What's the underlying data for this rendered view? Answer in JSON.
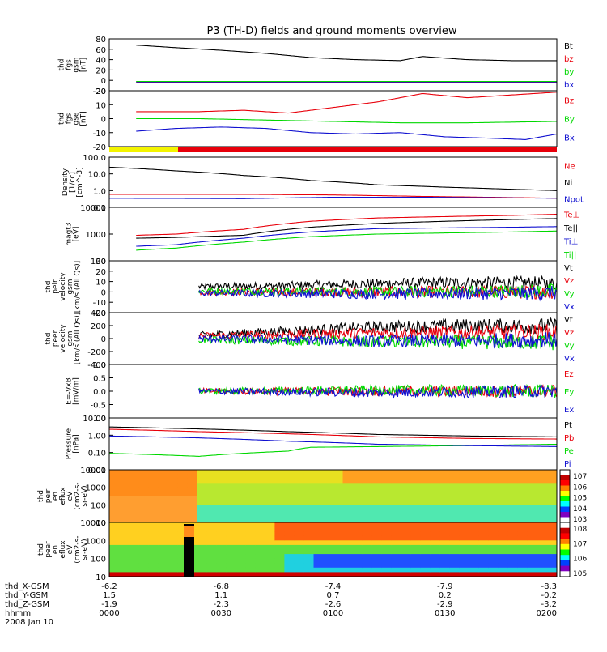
{
  "title": "P3 (TH-D) fields and ground moments overview",
  "colors": {
    "black": "#000000",
    "red": "#e8000b",
    "green": "#00d800",
    "blue": "#1010d0",
    "yellow": "#f4f400"
  },
  "chart_data": [
    {
      "type": "line",
      "id": "fgs",
      "ylabel": [
        "thd",
        "fgs",
        "gsm",
        "[nT]"
      ],
      "yticks": [
        "80",
        "60",
        "40",
        "20",
        "0",
        "-20"
      ],
      "ylim": [
        -20,
        80
      ],
      "legend": [
        {
          "label": "Bt",
          "color": "#000000"
        },
        {
          "label": "bz",
          "color": "#e8000b"
        },
        {
          "label": "by",
          "color": "#00d800"
        },
        {
          "label": "bx",
          "color": "#1010d0"
        }
      ],
      "series": [
        {
          "name": "Bt",
          "color": "#000000",
          "x": [
            0.06,
            0.15,
            0.25,
            0.35,
            0.45,
            0.55,
            0.65,
            0.7,
            0.8,
            0.9,
            1.0
          ],
          "y": [
            68,
            63,
            58,
            52,
            44,
            40,
            38,
            46,
            40,
            38,
            38
          ]
        },
        {
          "name": "bz",
          "color": "#e8000b",
          "x": [
            0.06,
            1.0
          ],
          "y": [
            -3,
            -3
          ]
        },
        {
          "name": "by",
          "color": "#00d800",
          "x": [
            0.06,
            1.0
          ],
          "y": [
            -2,
            -2
          ]
        },
        {
          "name": "bx",
          "color": "#1010d0",
          "x": [
            0.06,
            1.0
          ],
          "y": [
            -4,
            -4
          ]
        }
      ]
    },
    {
      "type": "line",
      "id": "fgs_gse",
      "ylabel": [
        "thd",
        "fgs",
        "gse",
        "[nT]"
      ],
      "yticks": [
        "20",
        "10",
        "0",
        "-10",
        "-20"
      ],
      "ylim": [
        -20,
        20
      ],
      "legend": [
        {
          "label": "Bz",
          "color": "#e8000b"
        },
        {
          "label": "By",
          "color": "#00d800"
        },
        {
          "label": "Bx",
          "color": "#1010d0"
        }
      ],
      "series": [
        {
          "name": "Bz",
          "color": "#e8000b",
          "x": [
            0.06,
            0.2,
            0.3,
            0.4,
            0.5,
            0.6,
            0.7,
            0.8,
            0.9,
            1.0
          ],
          "y": [
            5,
            5,
            6,
            4,
            8,
            12,
            18,
            15,
            17,
            19
          ]
        },
        {
          "name": "By",
          "color": "#00d800",
          "x": [
            0.06,
            0.2,
            0.35,
            0.5,
            0.65,
            0.8,
            1.0
          ],
          "y": [
            0,
            0,
            -1,
            -2,
            -3,
            -3,
            -2
          ]
        },
        {
          "name": "Bx",
          "color": "#1010d0",
          "x": [
            0.06,
            0.15,
            0.25,
            0.35,
            0.45,
            0.55,
            0.65,
            0.75,
            0.85,
            0.93,
            1.0
          ],
          "y": [
            -9,
            -7,
            -6,
            -7,
            -10,
            -11,
            -10,
            -13,
            -14,
            -15,
            -11
          ]
        }
      ]
    },
    {
      "type": "line",
      "id": "density",
      "ylabel": [
        "Density",
        "[1/cc]",
        "[cm^-3]"
      ],
      "yticks": [
        "100.0",
        "10.0",
        "1.0",
        "0.1"
      ],
      "ylim": [
        0.1,
        100
      ],
      "log": true,
      "legend": [
        {
          "label": "Ne",
          "color": "#e8000b"
        },
        {
          "label": "Ni",
          "color": "#000000"
        },
        {
          "label": "Npot",
          "color": "#1010d0"
        }
      ],
      "series": [
        {
          "name": "Ne",
          "color": "#e8000b",
          "x": [
            0.0,
            0.3,
            0.5,
            0.7,
            1.0
          ],
          "y": [
            0.6,
            0.6,
            0.55,
            0.45,
            0.35
          ]
        },
        {
          "name": "Ni",
          "color": "#000000",
          "x": [
            0.0,
            0.15,
            0.3,
            0.45,
            0.6,
            0.75,
            0.9,
            1.0
          ],
          "y": [
            25,
            15,
            8,
            4,
            2.2,
            1.6,
            1.2,
            1.0
          ]
        },
        {
          "name": "Npot",
          "color": "#1010d0",
          "x": [
            0.0,
            0.3,
            0.5,
            0.7,
            1.0
          ],
          "y": [
            0.35,
            0.33,
            0.4,
            0.4,
            0.35
          ]
        }
      ]
    },
    {
      "type": "line",
      "id": "temp",
      "ylabel": [
        "magt3",
        "[eV]"
      ],
      "yticks": [
        "10000",
        "1000",
        "100"
      ],
      "ylim": [
        100,
        10000
      ],
      "log": true,
      "legend": [
        {
          "label": "Te⊥",
          "color": "#e8000b"
        },
        {
          "label": "Te||",
          "color": "#000000"
        },
        {
          "label": "Ti⊥",
          "color": "#1010d0"
        },
        {
          "label": "Ti||",
          "color": "#00d800"
        }
      ],
      "series": [
        {
          "name": "Te⊥",
          "color": "#e8000b",
          "x": [
            0.06,
            0.15,
            0.3,
            0.45,
            0.6,
            0.75,
            0.9,
            1.0
          ],
          "y": [
            900,
            1000,
            1500,
            3000,
            4000,
            4500,
            5000,
            5500
          ]
        },
        {
          "name": "Te||",
          "color": "#000000",
          "x": [
            0.06,
            0.15,
            0.3,
            0.45,
            0.6,
            0.75,
            0.9,
            1.0
          ],
          "y": [
            700,
            750,
            900,
            1800,
            2500,
            3000,
            3500,
            3800
          ]
        },
        {
          "name": "Ti⊥",
          "color": "#1010d0",
          "x": [
            0.06,
            0.15,
            0.3,
            0.45,
            0.6,
            0.75,
            0.9,
            1.0
          ],
          "y": [
            350,
            400,
            700,
            1200,
            1600,
            1700,
            1800,
            1900
          ]
        },
        {
          "name": "Ti||",
          "color": "#00d800",
          "x": [
            0.06,
            0.15,
            0.3,
            0.45,
            0.6,
            0.75,
            0.9,
            1.0
          ],
          "y": [
            250,
            300,
            500,
            800,
            1000,
            1100,
            1200,
            1300
          ]
        }
      ]
    },
    {
      "type": "line",
      "id": "peir_v",
      "ylabel": [
        "thd",
        "peir",
        "velocity",
        "gsm",
        "[km/s (All Qs)]"
      ],
      "yticks": [
        "30",
        "20",
        "10",
        "0",
        "-10",
        "-20"
      ],
      "ylim": [
        -20,
        30
      ],
      "legend": [
        {
          "label": "Vt",
          "color": "#000000"
        },
        {
          "label": "Vz",
          "color": "#e8000b"
        },
        {
          "label": "Vy",
          "color": "#00d800"
        },
        {
          "label": "Vx",
          "color": "#1010d0"
        }
      ],
      "series": [
        {
          "name": "Vt",
          "color": "#000000",
          "x": [
            0.2,
            0.4,
            0.6,
            0.8,
            1.0
          ],
          "y": [
            5,
            6,
            8,
            9,
            8
          ]
        },
        {
          "name": "Vz",
          "color": "#e8000b",
          "x": [
            0.2,
            0.6,
            1.0
          ],
          "y": [
            0,
            0,
            0
          ]
        },
        {
          "name": "Vy",
          "color": "#00d800",
          "x": [
            0.2,
            0.6,
            1.0
          ],
          "y": [
            1,
            0,
            1
          ]
        },
        {
          "name": "Vx",
          "color": "#1010d0",
          "x": [
            0.2,
            0.6,
            1.0
          ],
          "y": [
            -1,
            -2,
            -1
          ]
        }
      ]
    },
    {
      "type": "line",
      "id": "peer_v",
      "ylabel": [
        "thd",
        "peer",
        "velocity",
        "gsm",
        "[km/s (All Qs)]"
      ],
      "yticks": [
        "400",
        "200",
        "0",
        "-200",
        "-400"
      ],
      "ylim": [
        -400,
        400
      ],
      "legend": [
        {
          "label": "Vt",
          "color": "#000000"
        },
        {
          "label": "Vz",
          "color": "#e8000b"
        },
        {
          "label": "Vy",
          "color": "#00d800"
        },
        {
          "label": "Vx",
          "color": "#1010d0"
        }
      ],
      "series": [
        {
          "name": "Vt",
          "color": "#000000",
          "x": [
            0.2,
            0.4,
            0.6,
            0.8,
            1.0
          ],
          "y": [
            50,
            120,
            180,
            200,
            190
          ]
        },
        {
          "name": "Vz",
          "color": "#e8000b",
          "x": [
            0.2,
            0.6,
            1.0
          ],
          "y": [
            40,
            90,
            100
          ]
        },
        {
          "name": "Vy",
          "color": "#00d800",
          "x": [
            0.2,
            0.6,
            1.0
          ],
          "y": [
            -20,
            -50,
            -60
          ]
        },
        {
          "name": "Vx",
          "color": "#1010d0",
          "x": [
            0.2,
            0.6,
            1.0
          ],
          "y": [
            0,
            -40,
            -20
          ]
        }
      ]
    },
    {
      "type": "line",
      "id": "efield",
      "ylabel": [
        "E=-VxB",
        "[mV/m]"
      ],
      "yticks": [
        "1.0",
        "0.5",
        "0.0",
        "-0.5",
        "-1.0"
      ],
      "ylim": [
        -1,
        1
      ],
      "legend": [
        {
          "label": "Ez",
          "color": "#e8000b"
        },
        {
          "label": "Ey",
          "color": "#00d800"
        },
        {
          "label": "Ex",
          "color": "#1010d0"
        }
      ],
      "series": [
        {
          "name": "Ez",
          "color": "#e8000b",
          "x": [
            0.2,
            1.0
          ],
          "y": [
            0,
            0
          ]
        },
        {
          "name": "Ey",
          "color": "#00d800",
          "x": [
            0.2,
            0.6,
            1.0
          ],
          "y": [
            0,
            0.05,
            0
          ]
        },
        {
          "name": "Ex",
          "color": "#1010d0",
          "x": [
            0.2,
            0.6,
            1.0
          ],
          "y": [
            0,
            -0.05,
            0
          ]
        }
      ]
    },
    {
      "type": "line",
      "id": "pressure",
      "ylabel": [
        "Pressure",
        "[nPa]"
      ],
      "yticks": [
        "10.00",
        "1.00",
        "0.10",
        "0.01"
      ],
      "ylim": [
        0.01,
        10
      ],
      "log": true,
      "legend": [
        {
          "label": "Pt",
          "color": "#000000"
        },
        {
          "label": "Pb",
          "color": "#e8000b"
        },
        {
          "label": "Pe",
          "color": "#00d800"
        },
        {
          "label": "Pi",
          "color": "#1010d0"
        }
      ],
      "series": [
        {
          "name": "Pt",
          "color": "#000000",
          "x": [
            0.0,
            0.2,
            0.4,
            0.6,
            0.8,
            1.0
          ],
          "y": [
            3.0,
            2.3,
            1.6,
            1.1,
            0.9,
            0.8
          ]
        },
        {
          "name": "Pb",
          "color": "#e8000b",
          "x": [
            0.0,
            0.2,
            0.4,
            0.6,
            0.8,
            1.0
          ],
          "y": [
            2.2,
            1.6,
            1.2,
            0.8,
            0.65,
            0.6
          ]
        },
        {
          "name": "Pe",
          "color": "#00d800",
          "x": [
            0.0,
            0.2,
            0.4,
            0.45,
            0.6,
            0.8,
            1.0
          ],
          "y": [
            0.09,
            0.06,
            0.12,
            0.2,
            0.22,
            0.25,
            0.3
          ]
        },
        {
          "name": "Pi",
          "color": "#1010d0",
          "x": [
            0.0,
            0.2,
            0.4,
            0.6,
            0.8,
            1.0
          ],
          "y": [
            0.9,
            0.7,
            0.45,
            0.3,
            0.25,
            0.22
          ]
        }
      ]
    },
    {
      "type": "heatmap",
      "id": "peir_en",
      "ylabel": [
        "thd",
        "peir",
        "en",
        "eflux",
        "eV",
        "(cm2-s-",
        "sr-eV)"
      ],
      "yticks": [
        "10000",
        "1000",
        "100",
        "10"
      ],
      "colorbar": {
        "ticks": [
          "10^7",
          "10^6",
          "10^5",
          "10^4",
          "10^3"
        ]
      }
    },
    {
      "type": "heatmap",
      "id": "peer_en",
      "ylabel": [
        "thd",
        "peer",
        "en",
        "eflux",
        "eV",
        "(cm2-s-",
        "sr-eV)"
      ],
      "yticks": [
        "10000",
        "1000",
        "100",
        "10"
      ],
      "colorbar": {
        "ticks": [
          "10^8",
          "10^7",
          "10^6",
          "10^5"
        ]
      }
    }
  ],
  "xaxis": {
    "rows": [
      {
        "label": "thd_X-GSM",
        "values": [
          "-6.2",
          "-6.8",
          "-7.4",
          "-7.9",
          "-8.3"
        ]
      },
      {
        "label": "thd_Y-GSM",
        "values": [
          "1.5",
          "1.1",
          "0.7",
          "0.2",
          "-0.2"
        ]
      },
      {
        "label": "thd_Z-GSM",
        "values": [
          "-1.9",
          "-2.3",
          "-2.6",
          "-2.9",
          "-3.2"
        ]
      },
      {
        "label": "hhmm",
        "values": [
          "0000",
          "0030",
          "0100",
          "0130",
          "0200"
        ]
      }
    ],
    "date": "2008 Jan 10"
  }
}
